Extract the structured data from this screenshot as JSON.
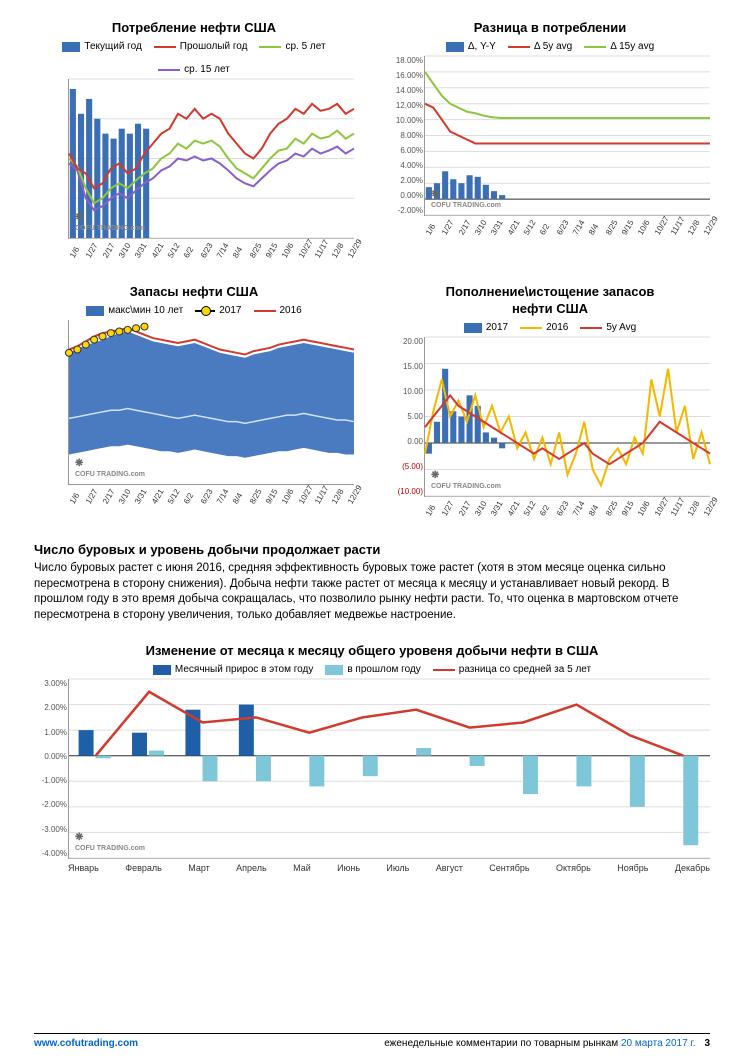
{
  "watermark": "COFU TRADING.com",
  "x_dates": [
    "1/6",
    "1/27",
    "2/17",
    "3/10",
    "3/31",
    "4/21",
    "5/12",
    "6/2",
    "6/23",
    "7/14",
    "8/4",
    "8/25",
    "9/15",
    "10/6",
    "10/27",
    "11/17",
    "12/8",
    "12/29"
  ],
  "chart1": {
    "title": "Потребление нефти США",
    "legend": [
      {
        "label": "Текущий год",
        "type": "bar",
        "color": "#3b6fb5"
      },
      {
        "label": "Прошолый год",
        "type": "line",
        "color": "#d23a2e"
      },
      {
        "label": "ср. 5 лет",
        "type": "line",
        "color": "#8fc63f"
      },
      {
        "label": "ср. 15 лет",
        "type": "line",
        "color": "#8a5fc9"
      }
    ],
    "yticks": [
      "",
      "",
      "",
      ""
    ],
    "bars": [
      15.0,
      12.5,
      14.0,
      12.0,
      10.5,
      10.0,
      11.0,
      10.5,
      11.5,
      11.0
    ],
    "lines": {
      "red": [
        8.5,
        7.0,
        6.5,
        5.0,
        5.5,
        7.0,
        7.5,
        6.5,
        7.0,
        8.5,
        9.5,
        10.5,
        11.0,
        12.5,
        12.0,
        13.0,
        12.0,
        12.5,
        12.0,
        10.5,
        9.5,
        8.5,
        8.0,
        9.0,
        10.5,
        11.5,
        12.0,
        13.0,
        12.5,
        13.5,
        12.8,
        13.0,
        13.5,
        12.5,
        13.0
      ],
      "green": [
        8.0,
        7.2,
        5.0,
        3.5,
        4.0,
        5.0,
        5.5,
        5.0,
        5.8,
        6.5,
        7.0,
        8.0,
        8.5,
        9.5,
        9.0,
        9.8,
        9.5,
        9.8,
        9.2,
        8.0,
        7.0,
        6.5,
        6.0,
        7.0,
        8.0,
        8.8,
        9.0,
        10.0,
        9.5,
        10.5,
        10.0,
        10.2,
        10.8,
        10.0,
        10.5
      ],
      "purple": [
        7.5,
        6.8,
        4.0,
        2.8,
        3.2,
        4.0,
        4.5,
        4.0,
        4.8,
        5.5,
        6.0,
        6.8,
        7.2,
        8.0,
        7.8,
        8.2,
        7.8,
        8.0,
        7.5,
        6.8,
        6.0,
        5.5,
        5.2,
        6.0,
        6.8,
        7.5,
        7.8,
        8.5,
        8.2,
        9.0,
        8.5,
        8.8,
        9.2,
        8.5,
        9.0
      ]
    },
    "ymax": 16
  },
  "chart2": {
    "title": "Разница в потреблении",
    "legend": [
      {
        "label": "Δ, Y-Y",
        "type": "bar",
        "color": "#3b6fb5"
      },
      {
        "label": "Δ 5y avg",
        "type": "line",
        "color": "#d23a2e"
      },
      {
        "label": "Δ 15y avg",
        "type": "line",
        "color": "#8fc63f"
      }
    ],
    "yticks": [
      "18.00%",
      "16.00%",
      "14.00%",
      "12.00%",
      "10.00%",
      "8.00%",
      "6.00%",
      "4.00%",
      "2.00%",
      "0.00%",
      "-2.00%"
    ],
    "ymin": -2,
    "ymax": 18,
    "bars": [
      1.5,
      2.0,
      3.5,
      2.5,
      2.0,
      3.0,
      2.8,
      1.8,
      1.0,
      0.5
    ],
    "lines": {
      "red": [
        12,
        11.5,
        10,
        8.5,
        8,
        7.5,
        7,
        7,
        7,
        7,
        7,
        7,
        7,
        7,
        7,
        7,
        7,
        7,
        7,
        7,
        7,
        7,
        7,
        7,
        7,
        7,
        7,
        7,
        7,
        7,
        7,
        7,
        7,
        7,
        7
      ],
      "green": [
        16,
        14.5,
        13,
        12,
        11.5,
        11,
        10.8,
        10.5,
        10.3,
        10.2,
        10.2,
        10.2,
        10.2,
        10.2,
        10.2,
        10.2,
        10.2,
        10.2,
        10.2,
        10.2,
        10.2,
        10.2,
        10.2,
        10.2,
        10.2,
        10.2,
        10.2,
        10.2,
        10.2,
        10.2,
        10.2,
        10.2,
        10.2,
        10.2,
        10.2
      ]
    }
  },
  "chart3": {
    "title": "Запасы нефти США",
    "legend": [
      {
        "label": "макс\\мин 10 лет",
        "type": "bar",
        "color": "#3b6fb5"
      },
      {
        "label": "2017",
        "type": "marker",
        "color": "#ffd700"
      },
      {
        "label": "2016",
        "type": "line",
        "color": "#d23a2e"
      }
    ],
    "yticks": [
      "",
      "",
      "",
      ""
    ],
    "band_top": [
      8.0,
      8.2,
      8.5,
      8.6,
      8.8,
      9.0,
      9.2,
      9.3,
      9.1,
      8.9,
      8.7,
      8.6,
      8.5,
      8.4,
      8.5,
      8.6,
      8.4,
      8.2,
      8.0,
      7.9,
      7.8,
      7.7,
      7.9,
      8.0,
      8.1,
      8.3,
      8.4,
      8.5,
      8.6,
      8.5,
      8.4,
      8.3,
      8.2,
      8.1,
      8.0
    ],
    "band_mid": [
      4.0,
      4.1,
      4.2,
      4.3,
      4.4,
      4.5,
      4.5,
      4.6,
      4.5,
      4.4,
      4.3,
      4.2,
      4.1,
      4.0,
      4.1,
      4.2,
      4.1,
      4.0,
      3.9,
      3.8,
      3.8,
      3.7,
      3.8,
      3.9,
      4.0,
      4.1,
      4.2,
      4.2,
      4.3,
      4.2,
      4.1,
      4.0,
      3.9,
      3.9,
      3.8
    ],
    "band_bot": [
      1.8,
      1.9,
      2.0,
      2.1,
      2.2,
      2.3,
      2.3,
      2.4,
      2.3,
      2.2,
      2.1,
      2.0,
      2.0,
      1.9,
      2.0,
      2.1,
      2.0,
      1.9,
      1.8,
      1.7,
      1.7,
      1.6,
      1.7,
      1.8,
      1.9,
      2.0,
      2.0,
      2.1,
      2.2,
      2.1,
      2.0,
      1.9,
      1.9,
      1.8,
      1.8
    ],
    "red": [
      8.2,
      8.4,
      8.7,
      9.0,
      9.2,
      9.3,
      9.4,
      9.5,
      9.3,
      9.1,
      8.9,
      8.8,
      8.7,
      8.6,
      8.7,
      8.8,
      8.6,
      8.4,
      8.2,
      8.1,
      8.0,
      7.9,
      8.1,
      8.2,
      8.3,
      8.5,
      8.6,
      8.7,
      8.8,
      8.7,
      8.6,
      8.5,
      8.4,
      8.3,
      8.2
    ],
    "markers": [
      8.0,
      8.2,
      8.5,
      8.8,
      9.0,
      9.2,
      9.3,
      9.4,
      9.5,
      9.6
    ],
    "ymax": 10
  },
  "chart4": {
    "title": "Пополнение\\истощение запасов",
    "subtitle": "нефти США",
    "legend": [
      {
        "label": "2017",
        "type": "bar",
        "color": "#3b6fb5"
      },
      {
        "label": "2016",
        "type": "line",
        "color": "#f5b800"
      },
      {
        "label": "5y Avg",
        "type": "line",
        "color": "#d23a2e"
      }
    ],
    "yticks": [
      "20.00",
      "15.00",
      "10.00",
      "5.00",
      "0.00",
      "(5.00)",
      "(10.00)"
    ],
    "ymin": -10,
    "ymax": 20,
    "bars": [
      -2,
      4,
      14,
      6,
      5,
      9,
      7,
      2,
      1,
      -1
    ],
    "lines": {
      "yellow": [
        -2,
        6,
        12,
        5,
        8,
        4,
        9,
        3,
        7,
        2,
        5,
        -1,
        2,
        -3,
        1,
        -4,
        2,
        -6,
        -2,
        4,
        -5,
        -8,
        -3,
        -1,
        -4,
        1,
        -2,
        12,
        5,
        14,
        2,
        7,
        -3,
        2,
        -4
      ],
      "red": [
        3,
        5,
        7,
        9,
        7,
        6,
        5,
        4,
        3,
        2,
        1,
        0,
        -1,
        -2,
        -1,
        -2,
        -3,
        -2,
        -1,
        0,
        -2,
        -3,
        -4,
        -3,
        -2,
        -1,
        0,
        2,
        4,
        3,
        2,
        1,
        0,
        -1,
        -2
      ]
    }
  },
  "section": {
    "heading": "Число буровых и уровень добычи продолжает расти",
    "body": "Число буровых растет с июня 2016, средняя эффективность буровых тоже растет (хотя в этом месяце оценка сильно пересмотрена в сторону снижения). Добыча нефти также растет от месяца к месяцу и устанавливает новый рекорд. В прошлом году в это время добыча сокращалась, что позволило рынку нефти расти. То, что оценка в мартовском отчете пересмотрена в сторону увеличения, только добавляет медвежье настроение."
  },
  "chart5": {
    "title": "Изменение от месяца к месяцу общего уровеня добычи нефти в США",
    "legend": [
      {
        "label": "Месячный прирос в этом году",
        "type": "bar",
        "color": "#1f5fa8"
      },
      {
        "label": "в прошлом году",
        "type": "bar",
        "color": "#7ec7d9"
      },
      {
        "label": "разница со средней за 5 лет",
        "type": "line",
        "color": "#d23a2e"
      }
    ],
    "yticks": [
      "3.00%",
      "2.00%",
      "1.00%",
      "0.00%",
      "-1.00%",
      "-2.00%",
      "-3.00%",
      "-4.00%"
    ],
    "ymin": -4,
    "ymax": 3,
    "months": [
      "Январь",
      "Февраль",
      "Март",
      "Апрель",
      "Май",
      "Июнь",
      "Июль",
      "Август",
      "Сентябрь",
      "Октябрь",
      "Ноябрь",
      "Декабрь"
    ],
    "bars_dark": [
      1.0,
      0.9,
      1.8,
      2.0,
      null,
      null,
      null,
      null,
      null,
      null,
      null,
      null
    ],
    "bars_light": [
      -0.1,
      0.2,
      -1.0,
      -1.0,
      -1.2,
      -0.8,
      0.3,
      -0.4,
      -1.5,
      -1.2,
      -2.0,
      -3.5
    ],
    "line": [
      0.0,
      2.5,
      1.3,
      1.5,
      0.9,
      1.5,
      1.8,
      1.1,
      1.3,
      2.0,
      0.8,
      0.0
    ]
  },
  "footer": {
    "site": "www.cofutrading.com",
    "caption": "еженедельные комментарии по товарным рынкам",
    "date": "20 марта 2017 г.",
    "page": "3"
  }
}
